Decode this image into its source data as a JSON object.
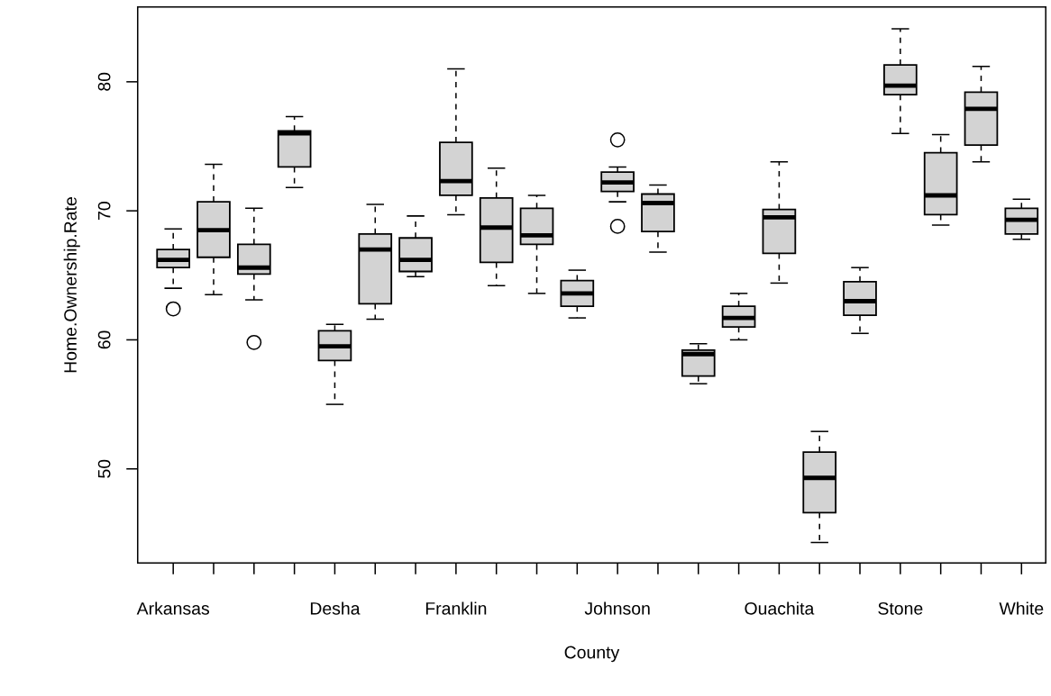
{
  "chart_data": {
    "type": "box",
    "xlabel": "County",
    "ylabel": "Home.Ownership.Rate",
    "categories": [
      "Arkansas",
      null,
      null,
      null,
      "Desha",
      null,
      null,
      "Franklin",
      null,
      null,
      null,
      "Johnson",
      null,
      null,
      null,
      "Ouachita",
      null,
      null,
      "Stone",
      null,
      null,
      "White"
    ],
    "color": "#d3d3d3",
    "boxes": [
      {
        "low": 64.0,
        "q1": 65.6,
        "median": 66.2,
        "q3": 67.0,
        "high": 68.6,
        "outliers": [
          62.4
        ]
      },
      {
        "low": 63.5,
        "q1": 66.4,
        "median": 68.5,
        "q3": 70.7,
        "high": 73.6
      },
      {
        "low": 63.1,
        "q1": 65.1,
        "median": 65.6,
        "q3": 67.4,
        "high": 70.2,
        "outliers": [
          59.8
        ]
      },
      {
        "low": 71.8,
        "q1": 73.4,
        "median": 76.0,
        "q3": 76.2,
        "high": 77.3
      },
      {
        "low": 55.0,
        "q1": 58.4,
        "median": 59.5,
        "q3": 60.7,
        "high": 61.2
      },
      {
        "low": 61.6,
        "q1": 62.8,
        "median": 67.0,
        "q3": 68.2,
        "high": 70.5
      },
      {
        "low": 64.9,
        "q1": 65.3,
        "median": 66.2,
        "q3": 67.9,
        "high": 69.6
      },
      {
        "low": 69.7,
        "q1": 71.2,
        "median": 72.3,
        "q3": 75.3,
        "high": 81.0
      },
      {
        "low": 64.2,
        "q1": 66.0,
        "median": 68.7,
        "q3": 71.0,
        "high": 73.3
      },
      {
        "low": 63.6,
        "q1": 67.4,
        "median": 68.1,
        "q3": 70.2,
        "high": 71.2
      },
      {
        "low": 61.7,
        "q1": 62.6,
        "median": 63.6,
        "q3": 64.6,
        "high": 65.4
      },
      {
        "low": 70.7,
        "q1": 71.5,
        "median": 72.2,
        "q3": 73.0,
        "high": 73.4,
        "outliers": [
          75.5,
          68.8
        ]
      },
      {
        "low": 66.8,
        "q1": 68.4,
        "median": 70.6,
        "q3": 71.3,
        "high": 72.0
      },
      {
        "low": 56.6,
        "q1": 57.2,
        "median": 58.9,
        "q3": 59.2,
        "high": 59.7
      },
      {
        "low": 60.0,
        "q1": 61.0,
        "median": 61.7,
        "q3": 62.6,
        "high": 63.6
      },
      {
        "low": 64.4,
        "q1": 66.7,
        "median": 69.5,
        "q3": 70.1,
        "high": 73.8
      },
      {
        "low": 44.3,
        "q1": 46.6,
        "median": 49.3,
        "q3": 51.3,
        "high": 52.9
      },
      {
        "low": 60.5,
        "q1": 61.9,
        "median": 63.0,
        "q3": 64.5,
        "high": 65.6
      },
      {
        "low": 76.0,
        "q1": 79.0,
        "median": 79.7,
        "q3": 81.3,
        "high": 84.1
      },
      {
        "low": 68.9,
        "q1": 69.7,
        "median": 71.2,
        "q3": 74.5,
        "high": 75.9
      },
      {
        "low": 73.8,
        "q1": 75.1,
        "median": 77.9,
        "q3": 79.2,
        "high": 81.2
      },
      {
        "low": 67.8,
        "q1": 68.2,
        "median": 69.3,
        "q3": 70.2,
        "high": 70.9
      }
    ],
    "ylim": [
      42.7,
      85.8
    ],
    "yticks": [
      50,
      60,
      70,
      80
    ]
  }
}
